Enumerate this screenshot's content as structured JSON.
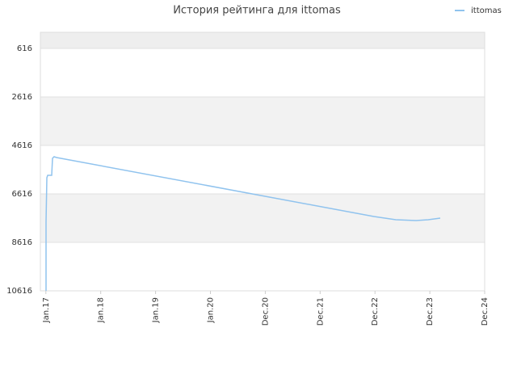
{
  "chart_data": {
    "type": "line",
    "title": "История рейтинга для ittomas",
    "x": [
      2017.003,
      2017.003,
      2017.018,
      2017.033,
      2017.106,
      2017.121,
      2017.15,
      2017.195,
      2022.98,
      2023.38,
      2023.75,
      2023.97,
      2024.19
    ],
    "series": [
      {
        "name": "ittomas",
        "color": "#90c3ee",
        "values": [
          10616,
          7783,
          5949,
          5849,
          5849,
          5149,
          5083,
          5116,
          7549,
          7683,
          7716,
          7683,
          7616
        ]
      }
    ],
    "xlim": [
      2016.9,
      2025.0
    ],
    "xticks": [
      {
        "value": 2017,
        "label": "Jan.17"
      },
      {
        "value": 2018,
        "label": "Jan.18"
      },
      {
        "value": 2019,
        "label": "Jan.19"
      },
      {
        "value": 2020,
        "label": "Jan.20"
      },
      {
        "value": 2021,
        "label": "Dec.20"
      },
      {
        "value": 2022,
        "label": "Dec.21"
      },
      {
        "value": 2023,
        "label": "Dec.22"
      },
      {
        "value": 2024,
        "label": "Dec.23"
      },
      {
        "value": 2025,
        "label": "Dec.24"
      }
    ],
    "ylim": [
      -51,
      10616
    ],
    "y_inverted": true,
    "yticks": [
      616,
      2616,
      4616,
      6616,
      8616,
      10616
    ],
    "grid": true,
    "legend": "top-right"
  }
}
